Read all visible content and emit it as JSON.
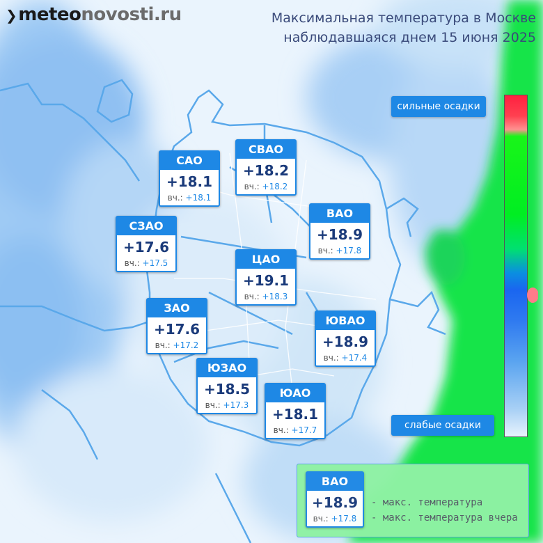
{
  "header": {
    "logo_black": "meteo",
    "logo_gray": "novosti.ru",
    "title_line1": "Максимальная температура в Москве",
    "title_line2": "наблюдавшаяся днем 15 июня 2025"
  },
  "legend": {
    "strong": "сильные осадки",
    "weak": "слабые осадки",
    "marker_color": "#ff7b8a"
  },
  "districts": [
    {
      "id": "sao",
      "name": "САО",
      "temp": "+18.1",
      "yest_label": "вч.:",
      "yest": "+18.1"
    },
    {
      "id": "svao",
      "name": "СВАО",
      "temp": "+18.2",
      "yest_label": "вч.:",
      "yest": "+18.2"
    },
    {
      "id": "szao",
      "name": "СЗАО",
      "temp": "+17.6",
      "yest_label": "вч.:",
      "yest": "+17.5"
    },
    {
      "id": "vao",
      "name": "ВАО",
      "temp": "+18.9",
      "yest_label": "вч.:",
      "yest": "+17.8"
    },
    {
      "id": "cao",
      "name": "ЦАО",
      "temp": "+19.1",
      "yest_label": "вч.:",
      "yest": "+18.3"
    },
    {
      "id": "zao",
      "name": "ЗАО",
      "temp": "+17.6",
      "yest_label": "вч.:",
      "yest": "+17.2"
    },
    {
      "id": "yuvao",
      "name": "ЮВАО",
      "temp": "+18.9",
      "yest_label": "вч.:",
      "yest": "+17.4"
    },
    {
      "id": "yuzao",
      "name": "ЮЗАО",
      "temp": "+18.5",
      "yest_label": "вч.:",
      "yest": "+17.3"
    },
    {
      "id": "yuao",
      "name": "ЮАО",
      "temp": "+18.1",
      "yest_label": "вч.:",
      "yest": "+17.7"
    }
  ],
  "key": {
    "name": "ВАО",
    "temp": "+18.9",
    "yest_label": "вч.:",
    "yest": "+17.8",
    "line1": "- макс. температура",
    "line2": "- макс. температура вчера"
  },
  "colors": {
    "accent": "#1e88e5",
    "temp_text": "#1a3a7a",
    "precip_green": "#12e64a",
    "light_blue": "#bcdcf8"
  }
}
